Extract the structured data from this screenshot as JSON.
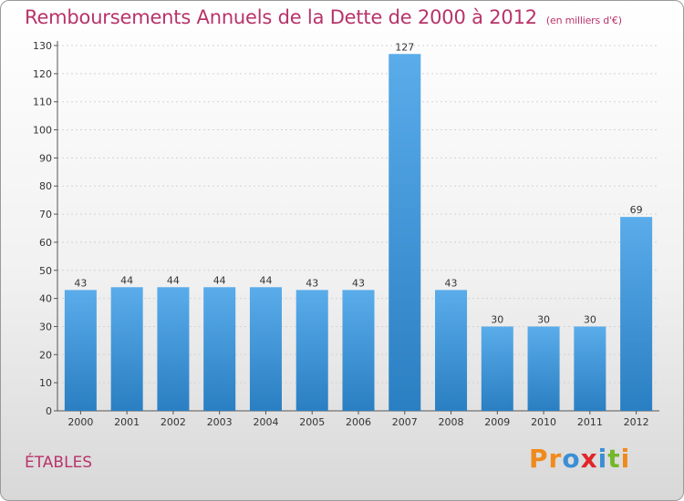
{
  "title": "Remboursements Annuels de la Dette de 2000 à 2012",
  "subtitle": "(en milliers d'€)",
  "city": "ÉTABLES",
  "brand": {
    "letters": [
      "P",
      "r",
      "o",
      "x",
      "i",
      "t",
      "i"
    ],
    "colors": [
      "#f08a1c",
      "#f08a1c",
      "#3a8fd6",
      "#e0262a",
      "#3a8fd6",
      "#74b82a",
      "#f08a1c"
    ]
  },
  "chart_data": {
    "type": "bar",
    "title": "Remboursements Annuels de la Dette de 2000 à 2012",
    "subtitle": "(en milliers d'€)",
    "categories": [
      "2000",
      "2001",
      "2002",
      "2003",
      "2004",
      "2005",
      "2006",
      "2007",
      "2008",
      "2009",
      "2010",
      "2011",
      "2012"
    ],
    "values": [
      43,
      44,
      44,
      44,
      44,
      43,
      43,
      127,
      43,
      30,
      30,
      30,
      69
    ],
    "ylim": [
      0,
      130
    ],
    "yticks": [
      0,
      10,
      20,
      30,
      40,
      50,
      60,
      70,
      80,
      90,
      100,
      110,
      120,
      130
    ],
    "grid": true,
    "bar_color_top": "#5aacea",
    "bar_color_bottom": "#2a7fc2"
  }
}
